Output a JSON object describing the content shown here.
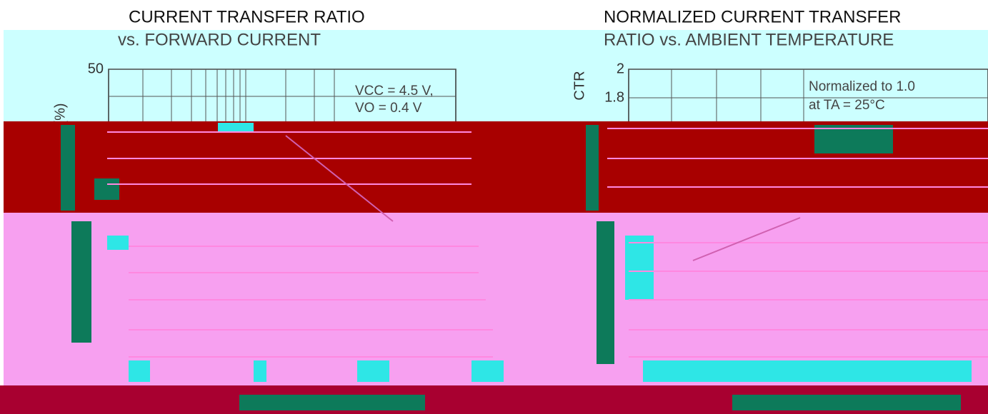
{
  "chart_data": [
    {
      "type": "line",
      "title": "CURRENT TRANSFER RATIO",
      "subtitle": "vs. FORWARD CURRENT",
      "y_label": "(%)",
      "yticks": [
        50
      ],
      "annotations": [
        "VCC = 4.5 V,",
        "VO = 0.4 V"
      ]
    },
    {
      "type": "line",
      "title": "NORMALIZED CURRENT TRANSFER",
      "subtitle": "RATIO vs. AMBIENT TEMPERATURE",
      "y_label": "CTR",
      "yticks": [
        2,
        1.8
      ],
      "annotations": [
        "Normalized to 1.0",
        "at TA = 25°C"
      ]
    }
  ]
}
